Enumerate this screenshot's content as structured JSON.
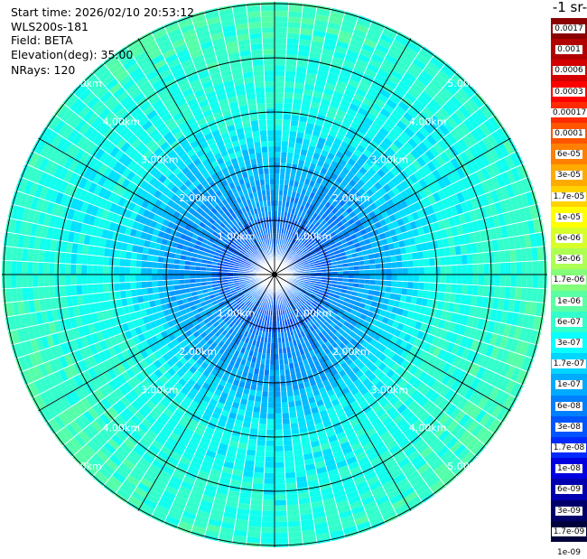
{
  "header": {
    "start_time": "Start time: 2026/02/10 20:53:12",
    "instrument": "WLS200s-181",
    "field": "Field: BETA",
    "elevation": "Elevation(deg): 35.00",
    "nrays": "NRays: 120"
  },
  "units_label": "-1 sr-",
  "ring_labels": {
    "r1": "1.00km",
    "r2": "2.00km",
    "r3": "3.00km",
    "r4": "4.00km",
    "r5": "5.00km"
  },
  "colorbar": {
    "colors": [
      "#8b0000",
      "#b20000",
      "#d40000",
      "#ff0000",
      "#ff2a00",
      "#ff5500",
      "#ff8000",
      "#ffaa00",
      "#ffd200",
      "#ffff00",
      "#d6ff29",
      "#adff52",
      "#84ff7a",
      "#5bffa3",
      "#33ffcc",
      "#0affff",
      "#00d5ff",
      "#00aaff",
      "#007fff",
      "#0055ff",
      "#002aff",
      "#0000e0",
      "#0000b0",
      "#00006a",
      "#00003a"
    ],
    "ticks": [
      "0.0017",
      "0.001",
      "0.0006",
      "0.0003",
      "0.00017",
      "0.0001",
      "6e-05",
      "3e-05",
      "1.7e-05",
      "1e-05",
      "6e-06",
      "3e-06",
      "1.7e-06",
      "1e-06",
      "6e-07",
      "3e-07",
      "1.7e-07",
      "1e-07",
      "6e-08",
      "3e-08",
      "1.7e-08",
      "1e-08",
      "6e-09",
      "3e-09",
      "1.7e-09",
      "1e-09"
    ]
  }
}
